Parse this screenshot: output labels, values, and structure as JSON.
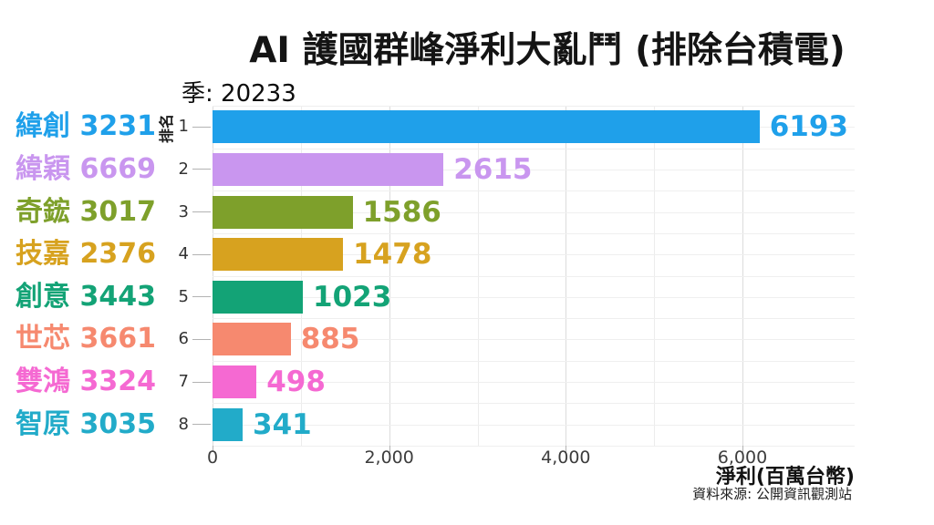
{
  "chart_data": {
    "type": "bar",
    "orientation": "horizontal",
    "title": "AI 護國群峰淨利大亂鬥 (排除台積電)",
    "frame_label": "季: 20233",
    "xlabel": "淨利(百萬台幣)",
    "ylabel": "排名",
    "source": "資料來源: 公開資訊觀測站",
    "xlim": [
      0,
      7250
    ],
    "x_ticks": [
      {
        "value": 0,
        "label": "0"
      },
      {
        "value": 2000,
        "label": "2,000"
      },
      {
        "value": 4000,
        "label": "4,000"
      },
      {
        "value": 6000,
        "label": "6,000"
      }
    ],
    "x_minor_step": 1000,
    "grid": true,
    "legend": "none",
    "bars": [
      {
        "rank": 1,
        "name": "緯創",
        "code": "3231",
        "value": 6193,
        "color": "#1FA0EA"
      },
      {
        "rank": 2,
        "name": "緯穎",
        "code": "6669",
        "value": 2615,
        "color": "#C996EF"
      },
      {
        "rank": 3,
        "name": "奇鋐",
        "code": "3017",
        "value": 1586,
        "color": "#7EA02B"
      },
      {
        "rank": 4,
        "name": "技嘉",
        "code": "2376",
        "value": 1478,
        "color": "#D7A21F"
      },
      {
        "rank": 5,
        "name": "創意",
        "code": "3443",
        "value": 1023,
        "color": "#13A376"
      },
      {
        "rank": 6,
        "name": "世芯",
        "code": "3661",
        "value": 885,
        "color": "#F6896F"
      },
      {
        "rank": 7,
        "name": "雙鴻",
        "code": "3324",
        "value": 498,
        "color": "#F569D2"
      },
      {
        "rank": 8,
        "name": "智原",
        "code": "3035",
        "value": 341,
        "color": "#22ABC9"
      }
    ]
  }
}
